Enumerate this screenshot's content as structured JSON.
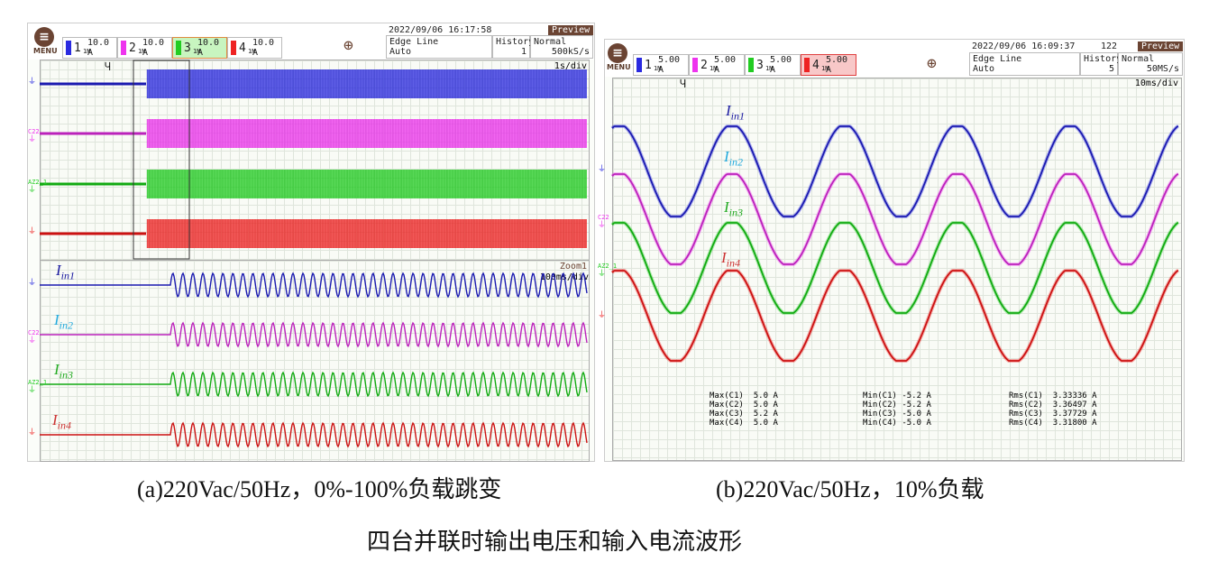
{
  "panel_a": {
    "menu_label": "MENU",
    "channels": [
      {
        "num": "1",
        "scale": "10.0 A",
        "coupling": "1M",
        "color": "#2a2ae0"
      },
      {
        "num": "2",
        "scale": "10.0 A",
        "coupling": "1M",
        "color": "#ee33ee"
      },
      {
        "num": "3",
        "scale": "10.0 A",
        "coupling": "1M",
        "color": "#22cc22",
        "selected": true
      },
      {
        "num": "4",
        "scale": "10.0 A",
        "coupling": "1M",
        "color": "#ee2222"
      }
    ],
    "datetime": "2022/09/06 16:17:58",
    "preview": "Preview",
    "trigger_type": "Edge Line",
    "trigger_mode": "Auto",
    "history_label": "History",
    "history_value": "1",
    "acq_mode": "Normal",
    "sample_rate": "500kS/s",
    "timebase": "1s/div",
    "zoom_label": "Zoom1",
    "zoom_timebase": "100ms/div",
    "ground_labels": [
      "",
      "C22",
      "AZ2_1",
      ""
    ],
    "trace_labels": [
      {
        "base": "I",
        "sub": "in1",
        "color": "#1a1aa0"
      },
      {
        "base": "I",
        "sub": "in2",
        "color": "#22aadd"
      },
      {
        "base": "I",
        "sub": "in3",
        "color": "#22aa22"
      },
      {
        "base": "I",
        "sub": "in4",
        "color": "#cc3333"
      }
    ]
  },
  "panel_b": {
    "menu_label": "MENU",
    "channels": [
      {
        "num": "1",
        "scale": "5.00 A",
        "coupling": "1M",
        "color": "#2a2ae0"
      },
      {
        "num": "2",
        "scale": "5.00 A",
        "coupling": "1M",
        "color": "#ee33ee"
      },
      {
        "num": "3",
        "scale": "5.00 A",
        "coupling": "1M",
        "color": "#22cc22"
      },
      {
        "num": "4",
        "scale": "5.00 A",
        "coupling": "1M",
        "color": "#ee2222",
        "selected": true
      }
    ],
    "datetime": "2022/09/06 16:09:37",
    "record_count": "122",
    "preview": "Preview",
    "trigger_type": "Edge Line",
    "trigger_mode": "Auto",
    "history_label": "History",
    "history_value": "5",
    "acq_mode": "Normal",
    "sample_rate": "50MS/s",
    "timebase": "10ms/div",
    "ground_labels": [
      "",
      "C22",
      "AZ2_1",
      ""
    ],
    "trace_labels": [
      {
        "base": "I",
        "sub": "in1",
        "color": "#1a1aa0"
      },
      {
        "base": "I",
        "sub": "in2",
        "color": "#22aadd"
      },
      {
        "base": "I",
        "sub": "in3",
        "color": "#22aa22"
      },
      {
        "base": "I",
        "sub": "in4",
        "color": "#cc3333"
      }
    ],
    "measurements": {
      "max": [
        "Max(C1)  5.0 A",
        "Max(C2)  5.0 A",
        "Max(C3)  5.2 A",
        "Max(C4)  5.0 A"
      ],
      "min": [
        "Min(C1) -5.2 A",
        "Min(C2) -5.2 A",
        "Min(C3) -5.0 A",
        "Min(C4) -5.0 A"
      ],
      "rms": [
        "Rms(C1)  3.33336 A",
        "Rms(C2)  3.36497 A",
        "Rms(C3)  3.37729 A",
        "Rms(C4)  3.31800 A"
      ]
    }
  },
  "captions": {
    "a": "(a)220Vac/50Hz，0%-100%负载跳变",
    "b": "(b)220Vac/50Hz，10%负载",
    "figure": "四台并联时输出电压和输入电流波形"
  }
}
